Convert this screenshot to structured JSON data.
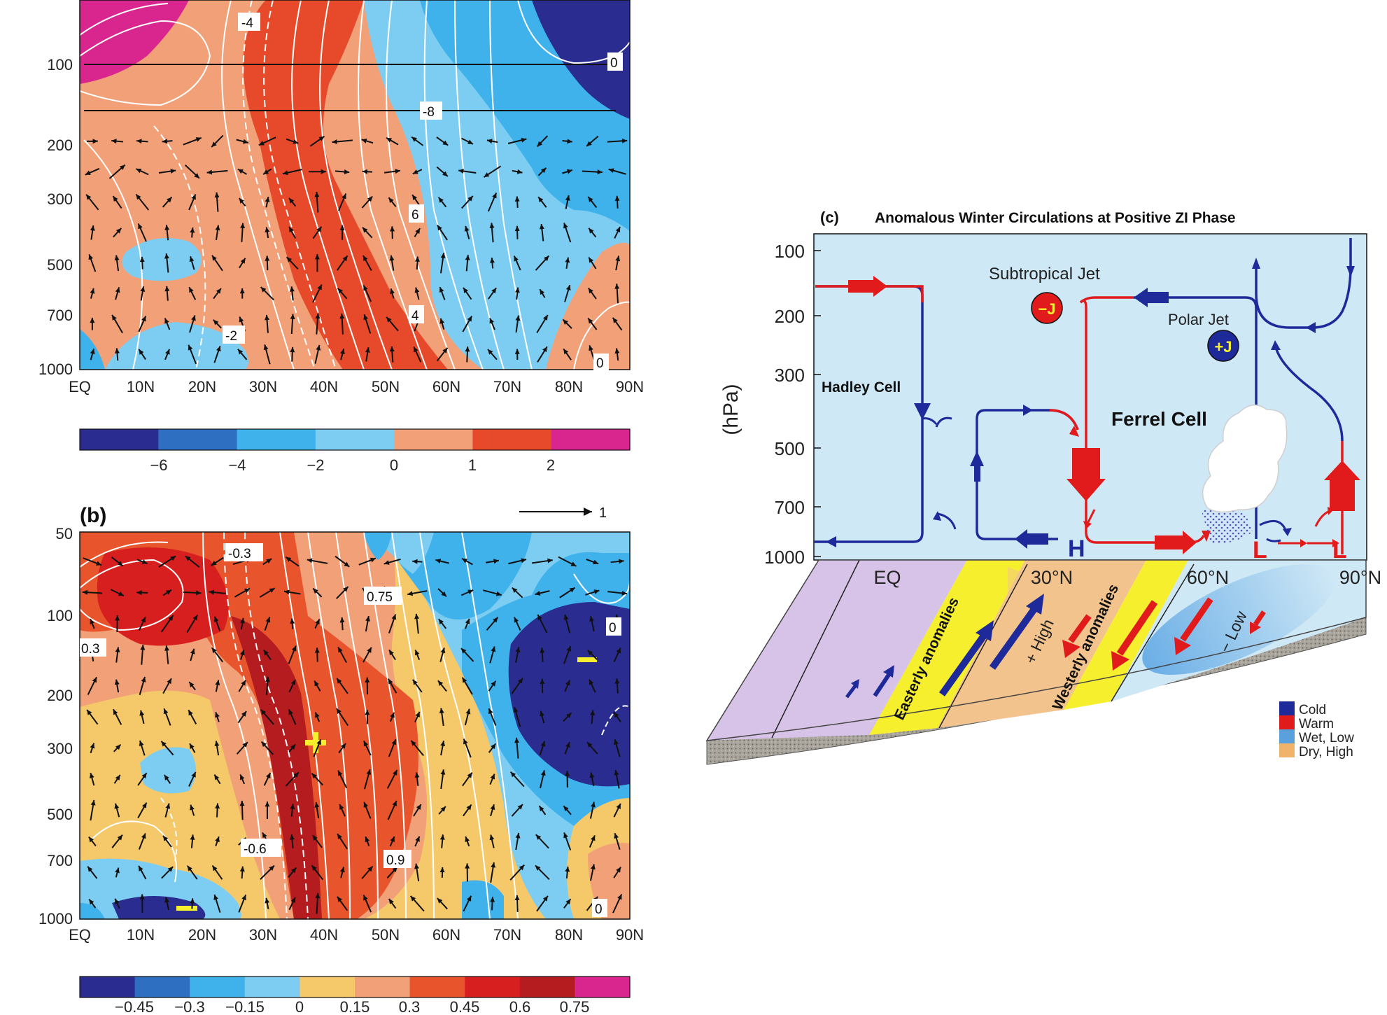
{
  "panel_a": {
    "y_ticks": [
      "100",
      "200",
      "300",
      "500",
      "700",
      "1000"
    ],
    "x_ticks": [
      "EQ",
      "10N",
      "20N",
      "30N",
      "40N",
      "50N",
      "60N",
      "70N",
      "80N",
      "90N"
    ],
    "contour_labels": [
      "-4",
      "0",
      "-8",
      "6",
      "4",
      "-2",
      "0"
    ],
    "colorbar": {
      "ticks": [
        "−6",
        "−4",
        "−2",
        "0",
        "1",
        "2"
      ],
      "colors": [
        "#2a2d8f",
        "#2f6fc1",
        "#3fb2ec",
        "#7dcdf2",
        "#f2a078",
        "#e64a2a",
        "#d9268f"
      ]
    }
  },
  "panel_b": {
    "label": "(b)",
    "ref_vector": "1",
    "y_ticks": [
      "50",
      "100",
      "200",
      "300",
      "500",
      "700",
      "1000"
    ],
    "x_ticks": [
      "EQ",
      "10N",
      "20N",
      "30N",
      "40N",
      "50N",
      "60N",
      "70N",
      "80N",
      "90N"
    ],
    "contour_labels": [
      "-0.3",
      "0.75",
      "0.3",
      "0",
      "-0.6",
      "0.9",
      "0"
    ],
    "colorbar": {
      "ticks": [
        "−0.45",
        "−0.3",
        "−0.15",
        "0",
        "0.15",
        "0.3",
        "0.45",
        "0.6",
        "0.75"
      ],
      "colors": [
        "#2a2d8f",
        "#2f6fc1",
        "#3fb2ec",
        "#7dcdf2",
        "#f5c96a",
        "#f2a078",
        "#e8542c",
        "#d81f1f",
        "#b41c20",
        "#d9268f"
      ]
    }
  },
  "panel_c": {
    "label": "(c)",
    "title": "Anomalous Winter Circulations at Positive ZI Phase",
    "ylabel": "(hPa)",
    "y_ticks": [
      "100",
      "200",
      "300",
      "500",
      "700",
      "1000"
    ],
    "x_ticks": [
      "EQ",
      "30°N",
      "60°N",
      "90°N"
    ],
    "labels": {
      "subtropical_jet": "Subtropical Jet",
      "subtropical_jet_sign": "−J",
      "polar_jet": "Polar Jet",
      "polar_jet_sign": "+J",
      "hadley_cell": "Hadley Cell",
      "ferrel_cell": "Ferrel Cell",
      "high_marker": "H",
      "low_marker_1": "L",
      "low_marker_2": "L",
      "easterly": "Easterly anomalies",
      "westerly": "Westerly anomalies",
      "high": "+ High",
      "low": "− Low"
    },
    "legend": [
      {
        "label": "Cold",
        "color": "#1f2a9a"
      },
      {
        "label": "Warm",
        "color": "#e11b1b"
      },
      {
        "label": "Wet, Low",
        "color": "#5aa0dc"
      },
      {
        "label": "Dry, High",
        "color": "#efb369"
      }
    ],
    "colors": {
      "background": "#cfe8f6",
      "blue_line": "#1f2a9a",
      "red_line": "#e11b1b",
      "ground_purple": "#d7c2e8",
      "ground_yellow": "#f5ef2e",
      "ground_orange": "#f3c38e",
      "ground_blue": "#8ec3ea"
    }
  }
}
